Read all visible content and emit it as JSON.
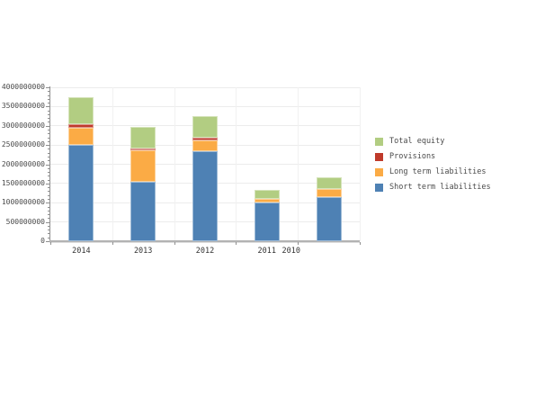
{
  "chart_data": {
    "type": "bar",
    "stacked": true,
    "title": "",
    "xlabel": "",
    "ylabel": "",
    "categories": [
      "2014",
      "2013",
      "2012",
      "2011",
      "2010"
    ],
    "series": [
      {
        "name": "Short term liabilities",
        "color": "#4e81b4",
        "values": [
          2500000000,
          1550000000,
          2350000000,
          1000000000,
          1150000000
        ]
      },
      {
        "name": "Long term liabilities",
        "color": "#fbab45",
        "values": [
          450000000,
          820000000,
          280000000,
          90000000,
          210000000
        ]
      },
      {
        "name": "Provisions",
        "color": "#bf3a2b",
        "values": [
          80000000,
          30000000,
          70000000,
          0,
          0
        ]
      },
      {
        "name": "Total equity",
        "color": "#b2cd82",
        "values": [
          720000000,
          580000000,
          560000000,
          240000000,
          300000000
        ]
      }
    ],
    "totals": [
      3750000000,
      2980000000,
      3260000000,
      1330000000,
      1660000000
    ],
    "ylim": [
      0,
      4000000000
    ],
    "y_tick_step": 500000000,
    "y_minor_tick_step": 100000000,
    "y_tick_labels": [
      "0",
      "500000000",
      "1000000000",
      "1500000000",
      "2000000000",
      "2500000000",
      "3000000000",
      "3500000000",
      "4000000000"
    ],
    "grid": true,
    "legend_position": "right",
    "legend": [
      {
        "label": "Total equity",
        "color": "#b2cd82"
      },
      {
        "label": "Provisions",
        "color": "#bf3a2b"
      },
      {
        "label": "Long term liabilities",
        "color": "#fbab45"
      },
      {
        "label": "Short term liabilities",
        "color": "#4e81b4"
      }
    ]
  }
}
